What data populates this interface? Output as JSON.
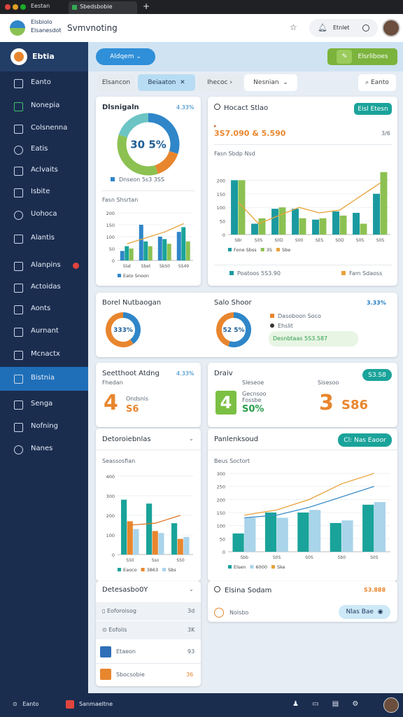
{
  "browser": {
    "tabs": [
      "Eestan",
      "Sbedsbobie"
    ]
  },
  "header": {
    "brand": [
      "Elsbiolo",
      "Elsanesdot"
    ],
    "title": "Svmvnoting",
    "user": "Etnlet"
  },
  "sidebar": {
    "logo": "Ebtia",
    "items": [
      "Eanto",
      "Nonepia",
      "Colsnenna",
      "Eatis",
      "Aclvaits",
      "Isbite",
      "Uohoca",
      "Alantis",
      "Alanpins",
      "Actoidas",
      "Aonts",
      "Aurnant",
      "Mcnactx",
      "Bistnia",
      "Senga",
      "Nofning",
      "Nanes"
    ]
  },
  "toolbar": {
    "primary": "Aldqem",
    "secondary": "Elsrliboes"
  },
  "filters": {
    "items": [
      "Elsancon",
      "Beiaaton",
      "Ihecoc",
      "Nesnian"
    ],
    "search": "Eanto"
  },
  "summary": {
    "title": "Dlsnigaln",
    "change": "4.33%",
    "legend": "Dnseon 5s3 3SS",
    "sub_title": "Fasn Shsrtan"
  },
  "main": {
    "title": "Hocact Stlao",
    "button": "Eisl Etesn",
    "metric": "3S7.090 & 5.590",
    "metric_side": "3/6",
    "subtitle": "Fasn Sbdp Nsd",
    "footer_left": "Poatoos 5S3.90",
    "footer_right": "Fam Sdaoss"
  },
  "breakdown": {
    "title": "Borel Nutbaogan",
    "title2": "Salo Shoor",
    "change": "3.33%",
    "items": [
      "Dasoboon Soco",
      "Ehslit",
      "Desnbtaas 5S3.587"
    ]
  },
  "stats_left": {
    "title": "Seetthoot Atdng",
    "change": "4.33%",
    "sub": "Fhedan",
    "big": "4",
    "value": "S6",
    "note": "Ondsnis"
  },
  "stats_right": {
    "title": "Draiv",
    "badge": "S3.S8",
    "col1": {
      "head": "Sleseoe",
      "big": "4",
      "sub": "Gecnsoo Fossbe",
      "value": "S0%"
    },
    "col2": {
      "head": "Sisesoo",
      "big": "3",
      "value": "S86"
    }
  },
  "details": {
    "title": "Detoroiebnlas",
    "sub": "Seassosfian"
  },
  "performance": {
    "title": "Panlenksoud",
    "button": "Cl: Nas Eaoor",
    "sub": "Beus Soctort"
  },
  "list": {
    "title": "Detesasbo0Y",
    "rows": [
      {
        "label": "Eoforoisog",
        "value": "3d"
      },
      {
        "label": "Eofolis",
        "value": "3K"
      },
      {
        "label": "Etaeon",
        "value": "93"
      },
      {
        "label": "Sbocsobie",
        "value": "36"
      }
    ]
  },
  "bottom_card": {
    "title": "Elsina Sodam",
    "value": "S3.888",
    "row": "Nolsbo",
    "pill": "Nlas Bae"
  },
  "footer": {
    "left": "Eanto",
    "app": "Sanmaeltne"
  },
  "chart_data": [
    {
      "type": "pie",
      "center_label": "30 5%",
      "values": [
        30,
        15,
        35,
        20
      ],
      "colors": [
        "#2f86c8",
        "#e8862e",
        "#8cc152",
        "#6cc4c4"
      ]
    },
    {
      "type": "bar",
      "categories": [
        "Slat",
        "Sbet",
        "SbS0",
        "SS49"
      ],
      "ylim": [
        0,
        200
      ],
      "yticks": [
        0,
        50,
        100,
        150,
        200
      ],
      "grid": true,
      "series": [
        {
          "name": "Eato Snoon",
          "color": "#2f86c8",
          "type": "bar",
          "values": [
            40,
            150,
            100,
            120
          ]
        },
        {
          "color": "#1aa39a",
          "type": "bar",
          "values": [
            60,
            80,
            90,
            140
          ]
        },
        {
          "color": "#8cc152",
          "type": "bar",
          "values": [
            50,
            60,
            70,
            80
          ]
        },
        {
          "color": "#e8a23a",
          "type": "line",
          "values": [
            70,
            95,
            120,
            155
          ]
        }
      ]
    },
    {
      "type": "bar",
      "categories": [
        "SBr",
        "S0S",
        "S0D",
        "S00",
        "SES",
        "S0D",
        "S0S",
        "S0S"
      ],
      "ylim": [
        0,
        250
      ],
      "yticks": [
        0,
        50,
        100,
        150,
        200
      ],
      "grid": true,
      "series": [
        {
          "name": "Fone Sbss",
          "color": "#1a9aa0",
          "type": "bar",
          "values": [
            200,
            40,
            95,
            95,
            55,
            85,
            80,
            150
          ]
        },
        {
          "name": "3S",
          "color": "#8cc152",
          "type": "bar",
          "values": [
            200,
            60,
            100,
            60,
            60,
            70,
            40,
            230
          ]
        },
        {
          "name": "Sbe",
          "color": "#e8a23a",
          "type": "line",
          "values": [
            120,
            40,
            70,
            100,
            80,
            90,
            140,
            190
          ]
        }
      ]
    },
    {
      "type": "pie",
      "center_label": "333%",
      "values": [
        40,
        60
      ],
      "colors": [
        "#2f86c8",
        "#e8862e"
      ]
    },
    {
      "type": "pie",
      "center_label": "52 5%",
      "values": [
        55,
        45
      ],
      "colors": [
        "#2f86c8",
        "#e8862e"
      ]
    },
    {
      "type": "bar",
      "categories": [
        "S50",
        "Sso",
        "S50"
      ],
      "ylim": [
        0,
        400
      ],
      "yticks": [
        0,
        100,
        200,
        300,
        400
      ],
      "grid": true,
      "series": [
        {
          "name": "Eaoco",
          "color": "#1aa39a",
          "type": "bar",
          "values": [
            280,
            260,
            160
          ]
        },
        {
          "name": "3863",
          "color": "#e8862e",
          "type": "bar",
          "values": [
            170,
            120,
            80
          ]
        },
        {
          "name": "Sbs",
          "color": "#a9d4ea",
          "type": "bar",
          "values": [
            130,
            110,
            90
          ]
        },
        {
          "color": "#e0782a",
          "type": "line",
          "values": [
            150,
            160,
            200
          ]
        }
      ]
    },
    {
      "type": "bar",
      "categories": [
        "Sbb",
        "S0S",
        "S0S",
        "Sb0",
        "S0S"
      ],
      "ylim": [
        0,
        300
      ],
      "yticks": [
        0,
        50,
        100,
        150,
        200,
        250,
        300
      ],
      "grid": true,
      "series": [
        {
          "name": "Elsen",
          "color": "#1aa39a",
          "type": "bar",
          "values": [
            70,
            150,
            150,
            110,
            180
          ]
        },
        {
          "name": "6000",
          "color": "#a9d4ea",
          "type": "bar",
          "values": [
            130,
            130,
            160,
            120,
            190
          ]
        },
        {
          "name": "Ske",
          "color": "#e8a23a",
          "type": "line",
          "values": [
            140,
            160,
            200,
            260,
            300
          ]
        },
        {
          "color": "#3a8cc8",
          "type": "line",
          "values": [
            130,
            140,
            170,
            210,
            250
          ]
        }
      ]
    }
  ]
}
